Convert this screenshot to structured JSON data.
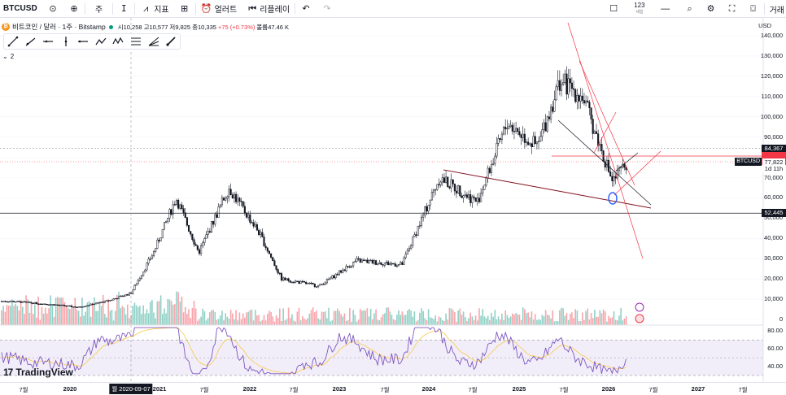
{
  "toolbar": {
    "symbol": "BTCUSD",
    "interval": "주",
    "indicators_label": "지표",
    "alert_label": "얼러트",
    "replay_label": "리플레이",
    "count_label": "123",
    "count_sub": "세일",
    "right_cut_label": "거래"
  },
  "legend": {
    "title": "비트코인 / 달러 · 1주 · Bitstamp",
    "open": "시10,258",
    "high": "고10,577",
    "low": "저9,825",
    "close": "종10,335",
    "change": "+75 (+0.73%)",
    "volume": "볼륨47.46 K",
    "collapse_count": "2"
  },
  "price_axis": {
    "currency": "USD",
    "ticks": [
      "140,000",
      "130,000",
      "120,000",
      "110,000",
      "100,000",
      "90,000",
      "80,000",
      "70,000",
      "60,000",
      "50,000",
      "40,000",
      "30,000",
      "20,000",
      "10,000",
      "0"
    ],
    "rsi_ticks": [
      "80.00",
      "60.00",
      "40.00"
    ],
    "crosshair_price": "84,367",
    "last_price": "77,822",
    "last_price_symbol": "BTCUSD",
    "countdown": "1d 11h",
    "level_price": "52,445"
  },
  "time_axis": {
    "labels": [
      "7월",
      "2020",
      "2021",
      "7월",
      "2022",
      "7월",
      "2023",
      "7월",
      "2024",
      "7월",
      "2025",
      "7월",
      "2026",
      "7월",
      "2027",
      "7월"
    ],
    "cursor_date": "월 2020-09-07"
  },
  "brand": {
    "name": "TradingView"
  },
  "colors": {
    "up": "#089981",
    "down": "#f23645",
    "rsi": "#7e57c2",
    "accent": "#2962ff"
  },
  "chart_data": {
    "type": "candlestick",
    "symbol": "BTCUSD",
    "interval": "1W",
    "y_range": [
      0,
      145000
    ],
    "close_series": [
      {
        "x": "2019-06",
        "y": 9000
      },
      {
        "x": "2019-12",
        "y": 7200
      },
      {
        "x": "2020-03",
        "y": 6000
      },
      {
        "x": "2020-07",
        "y": 9200
      },
      {
        "x": "2020-10",
        "y": 13000
      },
      {
        "x": "2021-01",
        "y": 33000
      },
      {
        "x": "2021-04",
        "y": 60000
      },
      {
        "x": "2021-07",
        "y": 33000
      },
      {
        "x": "2021-11",
        "y": 65000
      },
      {
        "x": "2022-03",
        "y": 43000
      },
      {
        "x": "2022-06",
        "y": 20000
      },
      {
        "x": "2022-11",
        "y": 16500
      },
      {
        "x": "2023-04",
        "y": 29000
      },
      {
        "x": "2023-10",
        "y": 27000
      },
      {
        "x": "2024-03",
        "y": 70000
      },
      {
        "x": "2024-08",
        "y": 58000
      },
      {
        "x": "2024-12",
        "y": 97000
      },
      {
        "x": "2025-04",
        "y": 85000
      },
      {
        "x": "2025-07",
        "y": 118000
      },
      {
        "x": "2025-10",
        "y": 110000
      },
      {
        "x": "2026-02",
        "y": 68000
      },
      {
        "x": "2026-04",
        "y": 77822
      }
    ],
    "horizontal_levels": [
      52445,
      84367,
      77822
    ],
    "rsi": {
      "ticks": [
        80,
        60,
        40
      ],
      "band": [
        30,
        70
      ]
    }
  }
}
